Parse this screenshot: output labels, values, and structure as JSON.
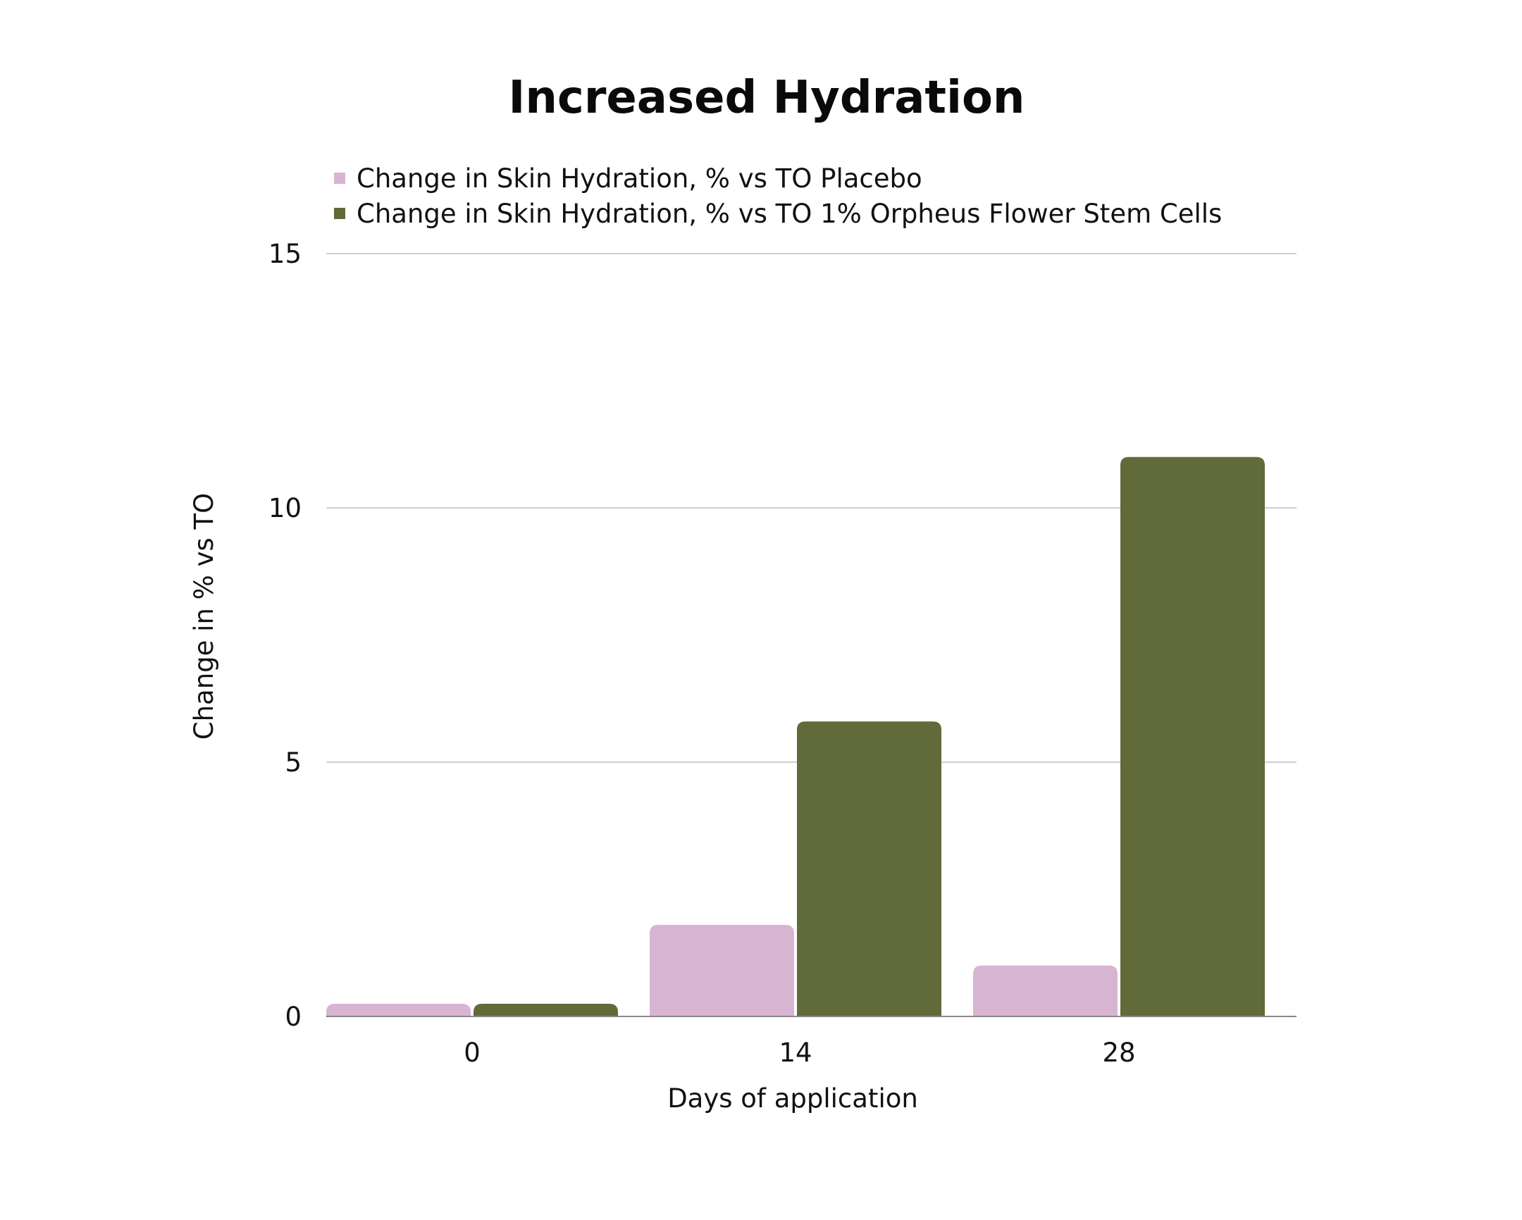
{
  "chart_data": {
    "type": "bar",
    "title": "Increased Hydration",
    "xlabel": "Days of application",
    "ylabel": "Change in % vs TO",
    "categories": [
      "0",
      "14",
      "28"
    ],
    "ylim": [
      0,
      15
    ],
    "yticks": [
      "0",
      "5",
      "10",
      "15"
    ],
    "grid": true,
    "legend_position": "top-left",
    "series": [
      {
        "name": "Change in Skin Hydration, % vs TO Placebo",
        "color": "#d8b4d3",
        "values": [
          0.25,
          1.8,
          1.0
        ]
      },
      {
        "name": "Change in Skin Hydration, % vs TO 1% Orpheus Flower Stem Cells",
        "color": "#616a39",
        "values": [
          0.25,
          5.8,
          11.0
        ]
      }
    ]
  }
}
